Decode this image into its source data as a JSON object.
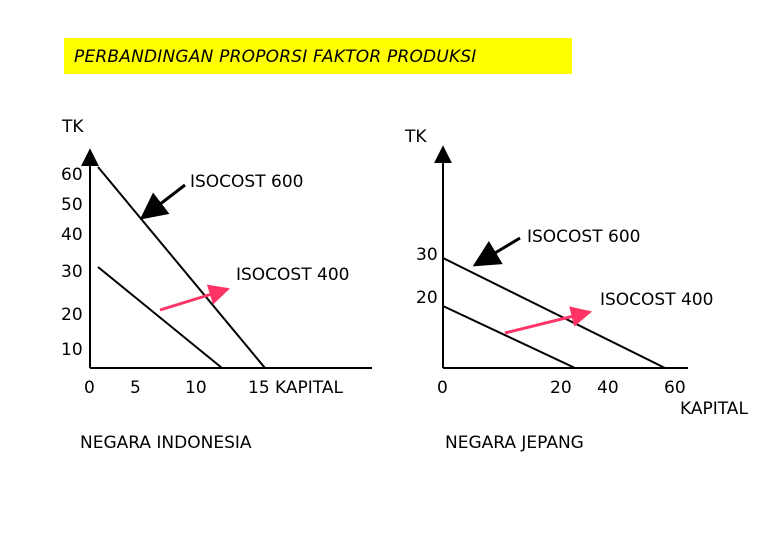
{
  "title": "PERBANDINGAN PROPORSI FAKTOR PRODUKSI",
  "left": {
    "y_axis_label": "TK",
    "y_ticks": [
      "60",
      "50",
      "40",
      "30",
      "20",
      "10"
    ],
    "x_ticks": [
      "0",
      "5",
      "10"
    ],
    "x_axis_label": "15 KAPITAL",
    "isocost_high": "ISOCOST 600",
    "isocost_low": "ISOCOST 400",
    "caption": "NEGARA INDONESIA"
  },
  "right": {
    "y_axis_label": "TK",
    "y_ticks": [
      "30",
      "20"
    ],
    "x_ticks": [
      "0",
      "20",
      "40",
      "60"
    ],
    "x_axis_label": "KAPITAL",
    "isocost_high": "ISOCOST 600",
    "isocost_low": "ISOCOST 400",
    "caption": "NEGARA JEPANG"
  },
  "colors": {
    "title_bg": "#ffff00",
    "arrow_red": "#ff3366",
    "arrow_black": "#000000"
  }
}
